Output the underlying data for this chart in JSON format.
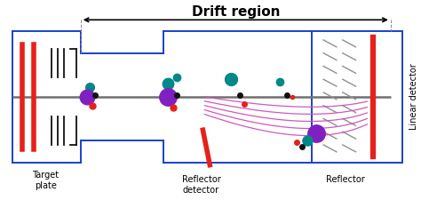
{
  "title": "Drift region",
  "bg_color": "#ffffff",
  "blue_color": "#1a40cc",
  "red_color": "#e8201a",
  "gray_color": "#909090",
  "pink_color": "#cc50bb",
  "teal_color": "#008888",
  "purple_color": "#8020c0",
  "black_color": "#111111",
  "labels": {
    "target_plate": "Target\nplate",
    "reflector_detector": "Reflector\ndetector",
    "reflector": "Reflector",
    "linear_detector": "Linear detector"
  },
  "fig_width": 4.74,
  "fig_height": 2.25,
  "dpi": 100
}
